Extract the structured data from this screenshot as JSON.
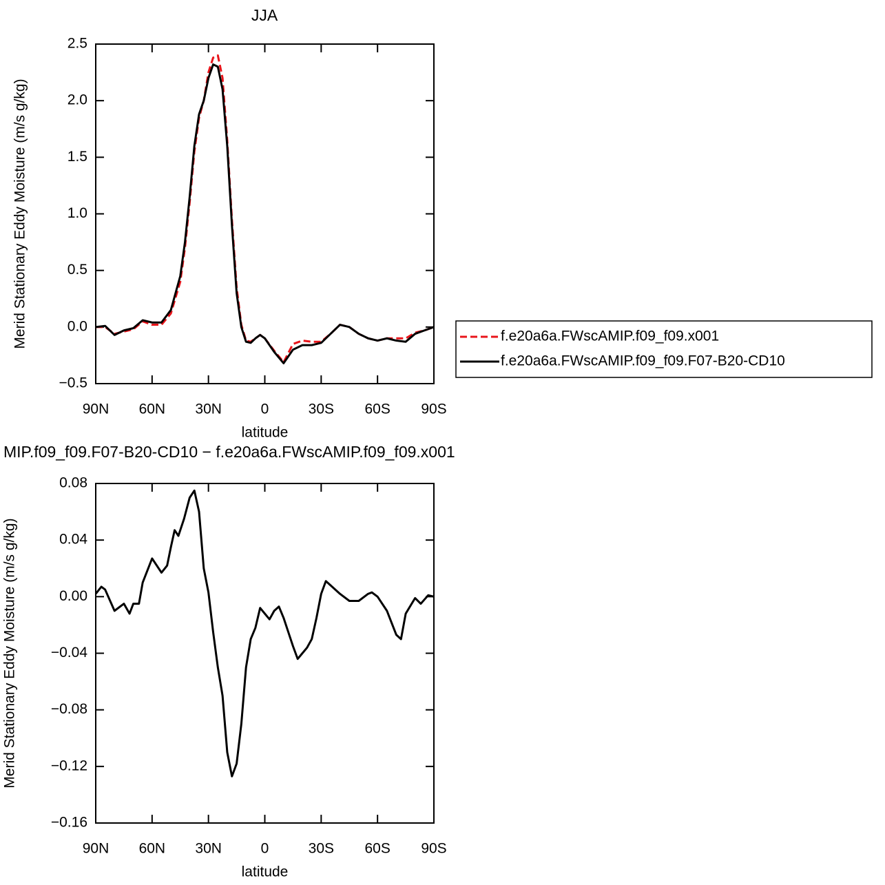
{
  "chart_data": [
    {
      "type": "line",
      "title": "JJA",
      "xlabel": "latitude",
      "ylabel": "Merid Stationary Eddy Moisture (m/s g/kg)",
      "x": [
        90,
        85,
        80,
        75,
        70,
        65,
        60,
        55,
        50,
        45,
        42.5,
        40,
        37.5,
        35,
        32.5,
        30,
        27.5,
        25,
        22.5,
        20,
        17.5,
        15,
        12.5,
        10,
        7.5,
        5,
        2.5,
        0,
        -5,
        -10,
        -15,
        -20,
        -25,
        -30,
        -35,
        -40,
        -45,
        -50,
        -55,
        -60,
        -65,
        -70,
        -75,
        -80,
        -85,
        -90
      ],
      "xlim": [
        90,
        -90
      ],
      "xticks": [
        {
          "value": 90,
          "label": "90N"
        },
        {
          "value": 60,
          "label": "60N"
        },
        {
          "value": 30,
          "label": "30N"
        },
        0,
        {
          "value": -30,
          "label": "30S"
        },
        {
          "value": -60,
          "label": "60S"
        },
        {
          "value": -90,
          "label": "90S"
        }
      ],
      "ylim": [
        -0.5,
        2.5
      ],
      "yticks": [
        {
          "value": 2.5,
          "label": "2.5"
        },
        {
          "value": 2.0,
          "label": "2.0"
        },
        {
          "value": 1.5,
          "label": "1.5"
        },
        {
          "value": 1.0,
          "label": "1.0"
        },
        {
          "value": 0.5,
          "label": "0.5"
        },
        {
          "value": 0.0,
          "label": "0.0"
        },
        {
          "value": -0.5,
          "label": "−0.5"
        }
      ],
      "series": [
        {
          "name": "f.e20a6a.FWscAMIP.f09_f09.x001",
          "color": "#e8141a",
          "dashed": true,
          "values": [
            0,
            0,
            -0.06,
            -0.04,
            -0.02,
            0.05,
            0.02,
            0.02,
            0.12,
            0.4,
            0.7,
            1.1,
            1.55,
            1.85,
            2.0,
            2.25,
            2.38,
            2.4,
            2.2,
            1.65,
            0.95,
            0.35,
            0.02,
            -0.12,
            -0.13,
            -0.1,
            -0.07,
            -0.1,
            -0.21,
            -0.31,
            -0.15,
            -0.12,
            -0.13,
            -0.13,
            -0.06,
            0.02,
            0,
            -0.06,
            -0.1,
            -0.12,
            -0.1,
            -0.1,
            -0.1,
            -0.05,
            -0.03,
            0
          ]
        },
        {
          "name": "f.e20a6a.FWscAMIP.f09_f09.F07-B20-CD10",
          "color": "#000000",
          "dashed": false,
          "values": [
            0,
            0.01,
            -0.07,
            -0.03,
            -0.01,
            0.06,
            0.04,
            0.04,
            0.15,
            0.45,
            0.75,
            1.15,
            1.6,
            1.88,
            2.0,
            2.2,
            2.32,
            2.3,
            2.1,
            1.6,
            0.9,
            0.3,
            0,
            -0.13,
            -0.14,
            -0.1,
            -0.07,
            -0.1,
            -0.22,
            -0.32,
            -0.2,
            -0.16,
            -0.16,
            -0.14,
            -0.06,
            0.02,
            0,
            -0.06,
            -0.1,
            -0.12,
            -0.1,
            -0.12,
            -0.13,
            -0.06,
            -0.03,
            0
          ]
        }
      ]
    },
    {
      "type": "line",
      "title": "MIP.f09_f09.F07-B20-CD10 − f.e20a6a.FWscAMIP.f09_f09.x001",
      "xlabel": "latitude",
      "ylabel": "Merid Stationary Eddy Moisture (m/s g/kg)",
      "x": [
        90,
        87,
        85,
        80,
        75,
        72,
        70,
        67,
        65,
        60,
        55,
        52,
        50,
        48,
        46,
        43,
        40,
        37.5,
        35,
        32.5,
        30,
        27.5,
        25,
        22.5,
        20,
        17.5,
        15,
        12.5,
        10,
        7.5,
        5,
        2.5,
        0,
        -2.5,
        -5,
        -7.5,
        -10,
        -12.5,
        -15,
        -17.5,
        -20,
        -22.5,
        -25,
        -27.5,
        -30,
        -32.5,
        -35,
        -40,
        -45,
        -50,
        -55,
        -57,
        -60,
        -65,
        -70,
        -72.5,
        -75,
        -80,
        -83,
        -85,
        -87,
        -90
      ],
      "xlim": [
        90,
        -90
      ],
      "xticks": [
        {
          "value": 90,
          "label": "90N"
        },
        {
          "value": 60,
          "label": "60N"
        },
        {
          "value": 30,
          "label": "30N"
        },
        0,
        {
          "value": -30,
          "label": "30S"
        },
        {
          "value": -60,
          "label": "60S"
        },
        {
          "value": -90,
          "label": "90S"
        }
      ],
      "ylim": [
        -0.16,
        0.08
      ],
      "yticks": [
        0.08,
        0.04,
        {
          "value": 0,
          "label": "0.00"
        },
        {
          "value": -0.04,
          "label": "−0.04"
        },
        {
          "value": -0.08,
          "label": "−0.08"
        },
        {
          "value": -0.12,
          "label": "−0.12"
        },
        {
          "value": -0.16,
          "label": "−0.16"
        }
      ],
      "series": [
        {
          "color": "#000000",
          "dashed": false,
          "values": [
            0.002,
            0.007,
            0.005,
            -0.01,
            -0.005,
            -0.012,
            -0.005,
            -0.005,
            0.01,
            0.027,
            0.017,
            0.022,
            0.035,
            0.047,
            0.043,
            0.055,
            0.07,
            0.075,
            0.06,
            0.02,
            0.003,
            -0.025,
            -0.05,
            -0.07,
            -0.11,
            -0.127,
            -0.118,
            -0.09,
            -0.05,
            -0.03,
            -0.022,
            -0.008,
            -0.012,
            -0.016,
            -0.01,
            -0.007,
            -0.015,
            -0.025,
            -0.035,
            -0.044,
            -0.04,
            -0.036,
            -0.03,
            -0.015,
            0.002,
            0.011,
            0.008,
            0.002,
            -0.003,
            -0.003,
            0.002,
            0.003,
            0,
            -0.01,
            -0.027,
            -0.03,
            -0.012,
            -0.001,
            -0.005,
            -0.002,
            0.001,
            0
          ]
        }
      ]
    }
  ]
}
